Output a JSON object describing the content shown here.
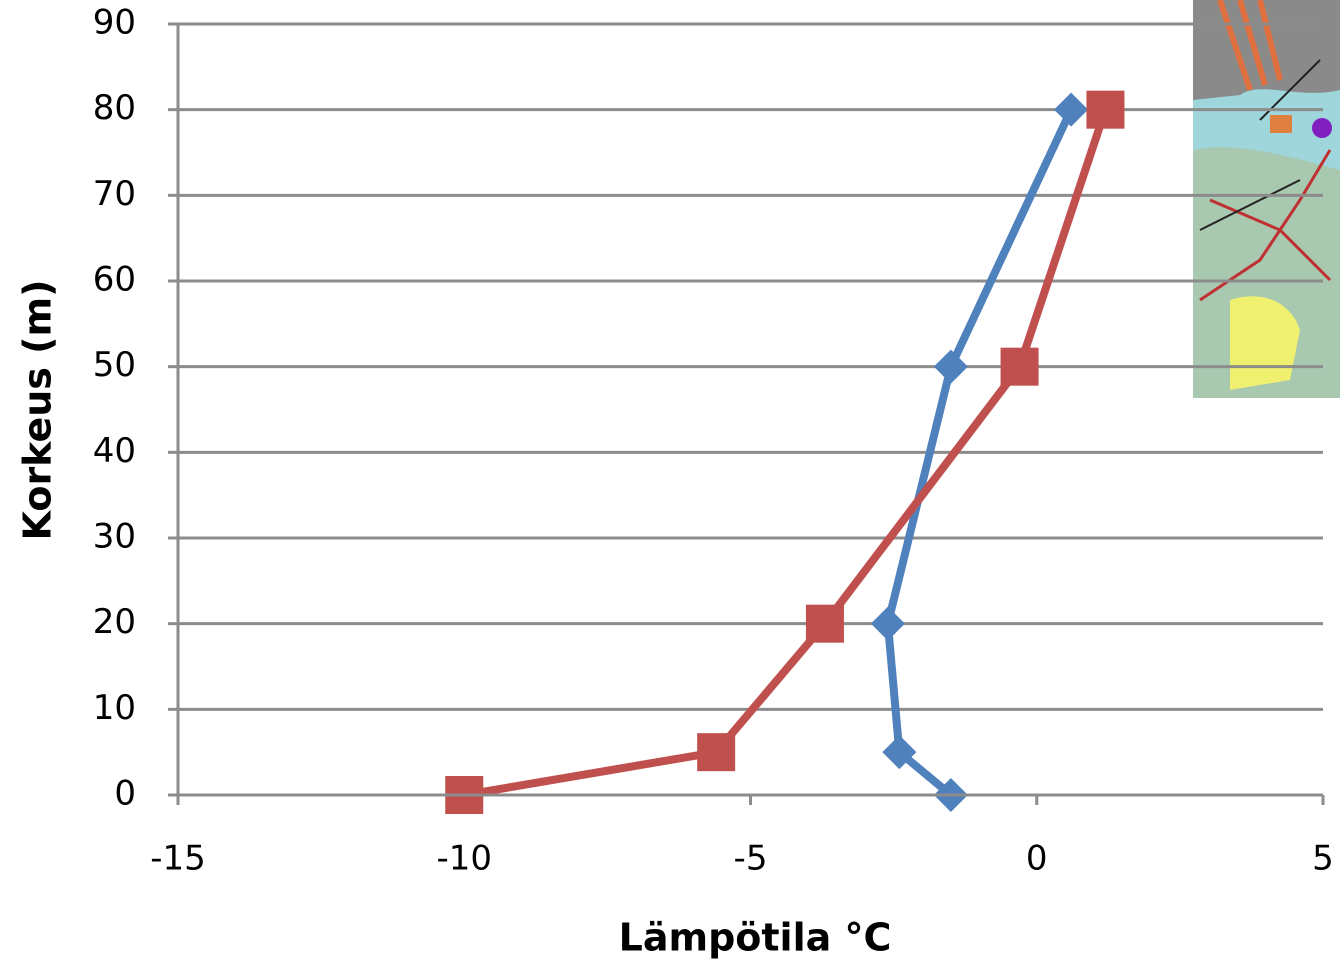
{
  "chart_data": {
    "type": "line",
    "x_label": "Lämpötila °C",
    "y_label": "Korkeus (m)",
    "xlim": [
      -15,
      5
    ],
    "xticks": [
      -15,
      -10,
      -5,
      0,
      5
    ],
    "ylim": [
      0,
      90
    ],
    "yticks": [
      0,
      10,
      20,
      30,
      40,
      50,
      60,
      70,
      80,
      90
    ],
    "grid": true,
    "series": [
      {
        "color": "#4f81bd",
        "marker": "diamond",
        "x": [
          -1.5,
          -2.4,
          -2.6,
          -1.5,
          0.6
        ],
        "values": [
          0,
          5,
          20,
          50,
          80
        ]
      },
      {
        "color": "#c0504d",
        "marker": "square",
        "x": [
          -10,
          -5.6,
          -3.7,
          -0.3,
          1.2
        ],
        "values": [
          0,
          5,
          20,
          50,
          80
        ]
      }
    ]
  }
}
